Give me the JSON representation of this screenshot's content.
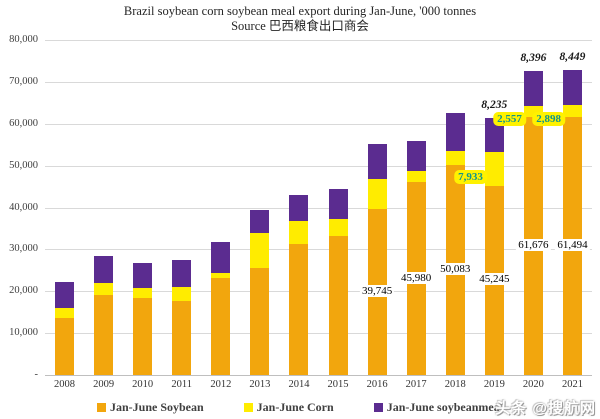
{
  "title": {
    "line1": "Brazil soybean corn soybean meal export during Jan-June, '000 tonnes",
    "line2": "Source 巴西粮食出口商会"
  },
  "watermark": "头条 @搜航网",
  "colors": {
    "soybean": "#F2A60D",
    "corn": "#FFEC00",
    "soybeanmeal": "#5B2C90",
    "corn_label_text": "#12948A",
    "corn_label_bg": "#FFF200",
    "gridline": "#D9D9D9",
    "axis_line": "#BFBFBF"
  },
  "y_axis": {
    "tick_labels": [
      "80,000",
      "70,000",
      "60,000",
      "50,000",
      "40,000",
      "30,000",
      "20,000",
      "10,000",
      "-"
    ],
    "tick_values": [
      80000,
      70000,
      60000,
      50000,
      40000,
      30000,
      20000,
      10000,
      0
    ]
  },
  "chart_data": {
    "type": "bar",
    "stacked": true,
    "title": "Brazil soybean corn soybean meal export during Jan-June, '000 tonnes",
    "subtitle": "Source 巴西粮食出口商会",
    "unit": "'000 tonnes",
    "ylim": [
      0,
      80000
    ],
    "grid": true,
    "legend_position": "bottom",
    "categories": [
      "2008",
      "2009",
      "2010",
      "2011",
      "2012",
      "2013",
      "2014",
      "2015",
      "2016",
      "2017",
      "2018",
      "2019",
      "2020",
      "2021"
    ],
    "series": [
      {
        "name": "Jan-June Soybean",
        "color": "#F2A60D",
        "values": [
          13500,
          19100,
          18300,
          17700,
          23100,
          25600,
          31200,
          33300,
          39745,
          45980,
          50083,
          45245,
          61676,
          61494
        ],
        "labels": [
          null,
          null,
          null,
          null,
          null,
          null,
          null,
          null,
          "39,745",
          "45,980",
          "50,083",
          "45,245",
          "61,676",
          "61,494"
        ]
      },
      {
        "name": "Jan-June Corn",
        "color": "#FFEC00",
        "values": [
          2400,
          2800,
          2400,
          3200,
          1200,
          8200,
          5600,
          4000,
          7050,
          2800,
          3300,
          7933,
          2557,
          2898
        ],
        "labels": [
          null,
          null,
          null,
          null,
          null,
          null,
          null,
          null,
          null,
          null,
          null,
          "7,933",
          "2,557",
          "2,898"
        ]
      },
      {
        "name": "Jan-June soybeanmeal",
        "color": "#5B2C90",
        "values": [
          6400,
          6500,
          6000,
          6600,
          7400,
          5600,
          6300,
          7000,
          8400,
          7150,
          9200,
          8235,
          8396,
          8449
        ],
        "labels": [
          null,
          null,
          null,
          null,
          null,
          null,
          null,
          null,
          null,
          null,
          null,
          "8,235",
          "8,396",
          "8,449"
        ]
      }
    ]
  },
  "legend": {
    "items": [
      {
        "label": "Jan-June Soybean"
      },
      {
        "label": "Jan-June Corn"
      },
      {
        "label": "Jan-June soybeanmeal"
      }
    ]
  }
}
